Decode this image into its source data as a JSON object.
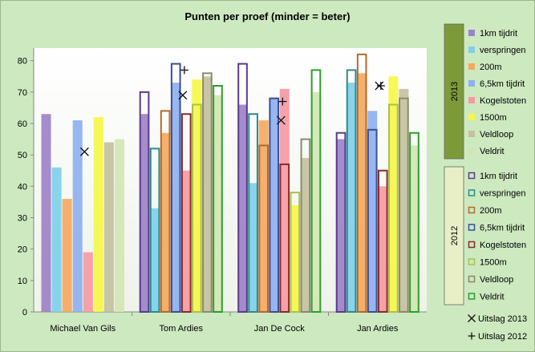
{
  "chart_data": {
    "type": "bar",
    "title": "Punten per proef (minder = beter)",
    "categories": [
      "Michael Van Gils",
      "Tom Ardies",
      "Jan De Cock",
      "Jan Ardies"
    ],
    "ylim": [
      0,
      80
    ],
    "yticks": [
      0,
      10,
      20,
      30,
      40,
      50,
      60,
      70,
      80
    ],
    "grid": false,
    "legend_position": "right",
    "groups": [
      {
        "name": "2013",
        "style": "filled",
        "color": "#7c9a3a",
        "series": [
          {
            "name": "1km tijdrit",
            "color": "#9d82c8",
            "values": [
              63,
              63,
              66,
              55
            ]
          },
          {
            "name": "verspringen",
            "color": "#7dd0ea",
            "values": [
              46,
              33,
              41,
              73
            ]
          },
          {
            "name": "200m",
            "color": "#f6a860",
            "values": [
              36,
              57,
              61,
              76
            ]
          },
          {
            "name": "6,5km tijdrit",
            "color": "#8fb0ee",
            "values": [
              61,
              73,
              68,
              64
            ]
          },
          {
            "name": "Kogelstoten",
            "color": "#f59aa2",
            "values": [
              19,
              45,
              71,
              40
            ]
          },
          {
            "name": "1500m",
            "color": "#f6f64a",
            "values": [
              62,
              74,
              34,
              75
            ]
          },
          {
            "name": "Veldloop",
            "color": "#c4c1a0",
            "values": [
              54,
              75,
              49,
              71
            ]
          },
          {
            "name": "Veldrit",
            "color": "#d2e6b4",
            "values": [
              55,
              69,
              70,
              53
            ]
          }
        ]
      },
      {
        "name": "2012",
        "style": "outline",
        "color": "#e8efc7",
        "series": [
          {
            "name": "1km tijdrit",
            "color": "#5b3a8c",
            "values": [
              null,
              70,
              79,
              57
            ]
          },
          {
            "name": "verspringen",
            "color": "#2e8a8a",
            "values": [
              null,
              52,
              63,
              77
            ]
          },
          {
            "name": "200m",
            "color": "#b56a2a",
            "values": [
              null,
              64,
              53,
              82
            ]
          },
          {
            "name": "6,5km tijdrit",
            "color": "#3a4e9a",
            "values": [
              null,
              79,
              68,
              58
            ]
          },
          {
            "name": "Kogelstoten",
            "color": "#8a2a2a",
            "values": [
              null,
              63,
              47,
              45
            ]
          },
          {
            "name": "1500m",
            "color": "#a8c24a",
            "values": [
              null,
              66,
              38,
              66
            ]
          },
          {
            "name": "Veldloop",
            "color": "#8a8a6a",
            "values": [
              null,
              76,
              55,
              68
            ]
          },
          {
            "name": "Veldrit",
            "color": "#2aa02a",
            "values": [
              null,
              72,
              77,
              57
            ]
          }
        ]
      }
    ],
    "markers": [
      {
        "name": "Uitslag 2013",
        "symbol": "×",
        "values": [
          51,
          69,
          61,
          72
        ]
      },
      {
        "name": "Uitslag 2012",
        "symbol": "+",
        "values": [
          null,
          77,
          67,
          72
        ]
      }
    ]
  }
}
